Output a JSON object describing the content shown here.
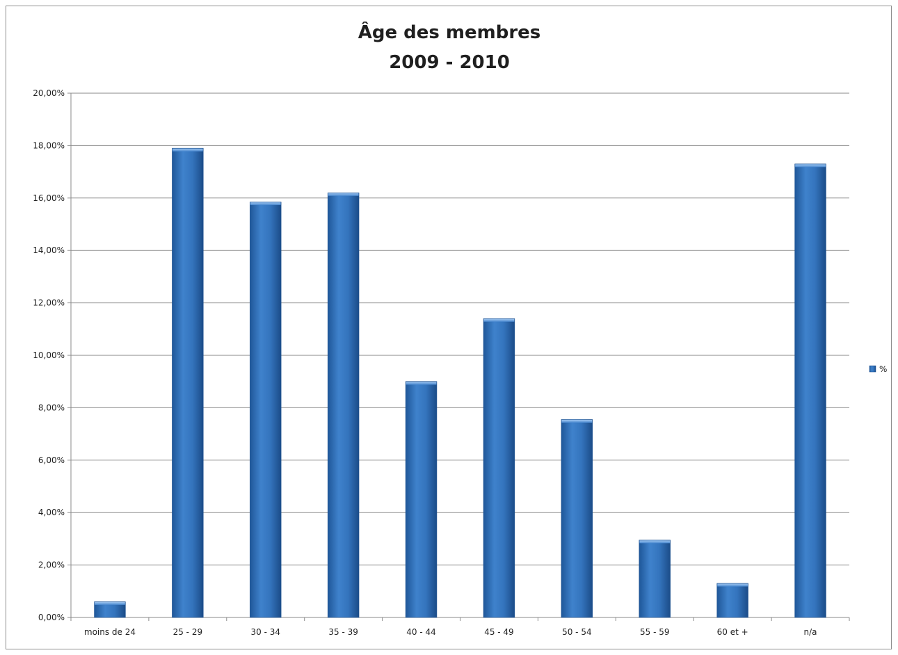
{
  "chart_data": {
    "type": "bar",
    "title": "Âge des membres",
    "subtitle": "2009 - 2010",
    "xlabel": "",
    "ylabel": "",
    "categories": [
      "moins de 24",
      "25 - 29",
      "30 - 34",
      "35 - 39",
      "40 - 44",
      "45 - 49",
      "50 - 54",
      "55 - 59",
      "60 et +",
      "n/a"
    ],
    "series": [
      {
        "name": "%",
        "values": [
          0.6,
          17.9,
          15.85,
          16.2,
          9.0,
          11.4,
          7.55,
          2.95,
          1.3,
          17.3
        ],
        "color": "#2e6db4"
      }
    ],
    "ylim": [
      0,
      20
    ],
    "yticks": [
      0,
      2,
      4,
      6,
      8,
      10,
      12,
      14,
      16,
      18,
      20
    ],
    "ytick_labels": [
      "0,00%",
      "2,00%",
      "4,00%",
      "6,00%",
      "8,00%",
      "10,00%",
      "12,00%",
      "14,00%",
      "16,00%",
      "18,00%",
      "20,00%"
    ],
    "grid": true,
    "legend_position": "right"
  },
  "colors": {
    "bar": "#2e6db4",
    "bar_dark": "#1a4f8f",
    "bar_light": "#4d8dd4",
    "grid": "#8a8a8a"
  }
}
